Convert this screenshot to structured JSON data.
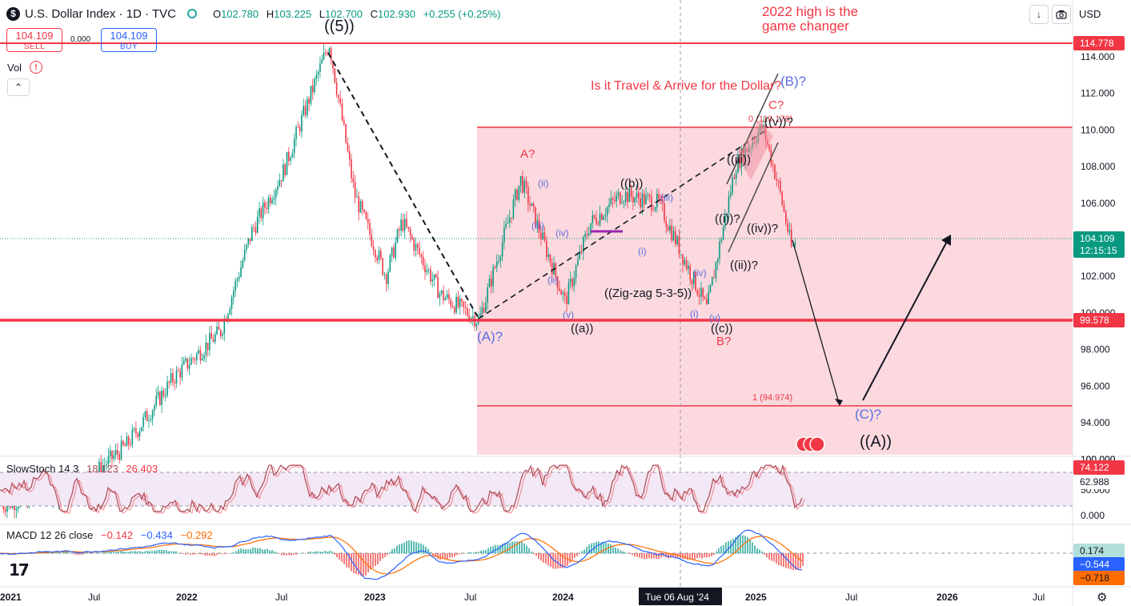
{
  "header": {
    "logo_glyph": "$",
    "symbol": "U.S. Dollar Index · 1D · TVC",
    "open_label": "O",
    "open": "102.780",
    "high_label": "H",
    "high": "103.225",
    "low_label": "L",
    "low": "102.700",
    "close_label": "C",
    "close": "102.930",
    "change": "+0.255 (+0.25%)"
  },
  "trade": {
    "sell_price": "104.109",
    "sell_label": "SELL",
    "buy_price": "104.109",
    "buy_label": "BUY",
    "spread": "0.000"
  },
  "volume": {
    "label": "Vol",
    "warning_glyph": "!",
    "collapse_glyph": "⌃"
  },
  "toolbar": {
    "download_glyph": "↓",
    "currency": "USD",
    "currency_chevron": "⌄"
  },
  "icons": {
    "logo": "dollar-icon",
    "market": "market-open-icon",
    "warning": "warning-icon",
    "collapse": "chevron-up-icon",
    "download": "download-icon",
    "snapshot": "camera-icon",
    "settings": "gear-icon",
    "brand": "tradingview-logo",
    "flag": "us-flag-icon"
  },
  "colors": {
    "up": "#089981",
    "down": "#f23645",
    "pink_zone": "#fbd9de",
    "wave_blue": "#5b6ee1",
    "wave_red": "#f23645",
    "stoch_k": "#b0525d",
    "stoch_band": "#f3e8f5",
    "macd_line": "#2962ff",
    "macd_signal": "#ff6d00"
  },
  "chart_data": {
    "type": "candlestick",
    "symbol": "U.S. Dollar Index",
    "interval": "1D",
    "ylim": [
      92.5,
      117.5
    ],
    "y_ticks": [
      "94.000",
      "96.000",
      "98.000",
      "100.000",
      "102.000",
      "104.000",
      "106.000",
      "108.000",
      "110.000",
      "112.000",
      "114.000"
    ],
    "x_ticks": [
      "2021",
      "Jul",
      "2022",
      "Jul",
      "2023",
      "Jul",
      "2024",
      "Jul",
      "2025",
      "Jul",
      "2026",
      "Jul"
    ],
    "crosshair_date": "Tue 06 Aug '24",
    "price_markers": {
      "high_line": "114.778",
      "low_line": "99.578",
      "last": "104.109",
      "countdown": "12:15:15",
      "bottom_partial": "100.000"
    },
    "path_points": [
      [
        "2021-01-01",
        89.5
      ],
      [
        "2021-06-01",
        90.5
      ],
      [
        "2021-09-01",
        92.8
      ],
      [
        "2021-12-01",
        96.5
      ],
      [
        "2022-03-01",
        99.0
      ],
      [
        "2022-05-01",
        104.5
      ],
      [
        "2022-07-01",
        107.8
      ],
      [
        "2022-09-27",
        114.778
      ],
      [
        "2022-11-15",
        106.5
      ],
      [
        "2023-01-15",
        102.0
      ],
      [
        "2023-02-15",
        105.0
      ],
      [
        "2023-05-01",
        101.0
      ],
      [
        "2023-07-14",
        99.578
      ],
      [
        "2023-10-03",
        107.3
      ],
      [
        "2023-12-28",
        100.6
      ],
      [
        "2024-02-14",
        104.9
      ],
      [
        "2024-04-16",
        106.5
      ],
      [
        "2024-06-26",
        106.0
      ],
      [
        "2024-09-27",
        100.2
      ],
      [
        "2024-11-22",
        108.1
      ],
      [
        "2025-01-13",
        110.2
      ],
      [
        "2025-02-14",
        106.8
      ],
      [
        "2025-03-11",
        103.4
      ],
      [
        "2025-03-19",
        104.109
      ]
    ],
    "annotations": {
      "title_note_1": "2022 high is the",
      "title_note_2": "game changer",
      "question": "Is it Travel & Arrive for the Dollar?",
      "w5": "((5))",
      "A_major": "(A)?",
      "A_minor": "A?",
      "B_minor": "B?",
      "C_minor": "C?",
      "B_major": "(B)?",
      "C_major": "(C)?",
      "AA": "((A))",
      "a": "((a))",
      "b": "((b))",
      "c": "((c))",
      "zigzag": "((Zig-zag 5-3-5))",
      "i_blue": "(i)",
      "ii_blue": "(ii)",
      "ii_blue2": "(ii)",
      "iii_blue": "(iii)",
      "iii_blue2": "(iii)",
      "iv_blue": "(iv)",
      "iv_blue2": "(iv)",
      "v_blue": "(v)",
      "v_blue2": "(v)",
      "v_blue3": "((v))",
      "i_blue2": "(i)",
      "ii_top": "((ii))",
      "w_i": "((i))?",
      "w_ii": "((ii))?",
      "w_iii": "((iii))",
      "w_iv": "((iv))?",
      "w_v": "((v))?",
      "fib0": "0 (110.176)",
      "fib1": "1 (94.974)"
    },
    "slow_stoch": {
      "title": "SlowStoch 14 3",
      "k": "18.123",
      "d": "26.403",
      "k_last": "74.122",
      "d_last": "62.988",
      "ticks": [
        "100.000",
        "50.000",
        "0.000"
      ],
      "ylim": [
        0,
        100
      ]
    },
    "macd": {
      "title": "MACD 12 26 close",
      "hist": "−0.142",
      "macd": "−0.434",
      "signal": "−0.292",
      "hist_last": "0.174",
      "macd_last": "−0.544",
      "signal_last": "−0.718"
    }
  }
}
